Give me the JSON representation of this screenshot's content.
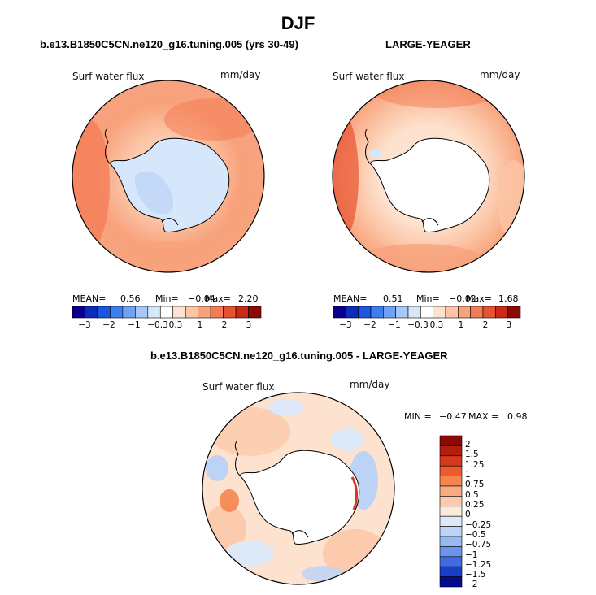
{
  "figure": {
    "title": "DJF",
    "panel_a_title": "b.e13.B1850C5CN.ne120_g16.tuning.005 (yrs 30-49)",
    "panel_b_title": "LARGE-YEAGER",
    "panel_c_title": "b.e13.B1850C5CN.ne120_g16.tuning.005 - LARGE-YEAGER"
  },
  "panels": [
    {
      "variable": "Surf water flux",
      "units": "mm/day",
      "stats": {
        "mean_label": "MEAN=",
        "mean": "0.56",
        "min_label": "Min=",
        "min": "−0.04",
        "max_label": "Max=",
        "max": "2.20"
      },
      "colorbar_ticks": [
        "−3",
        "−2",
        "−1",
        "−0.3",
        "0.3",
        "1",
        "2",
        "3"
      ]
    },
    {
      "variable": "Surf water flux",
      "units": "mm/day",
      "stats": {
        "mean_label": "MEAN=",
        "mean": "0.51",
        "min_label": "Min=",
        "min": "−0.02",
        "max_label": "Max=",
        "max": "1.68"
      },
      "colorbar_ticks": [
        "−3",
        "−2",
        "−1",
        "−0.3",
        "0.3",
        "1",
        "2",
        "3"
      ]
    },
    {
      "variable": "Surf water flux",
      "units": "mm/day",
      "stats": {
        "min_label": "MIN =",
        "min": "−0.47",
        "max_label": "MAX =",
        "max": "0.98"
      },
      "colorbar_ticks": [
        "2",
        "1.5",
        "1.25",
        "1",
        "0.75",
        "0.5",
        "0.25",
        "0",
        "−0.25",
        "−0.5",
        "−0.75",
        "−1",
        "−1.25",
        "−1.5",
        "−2"
      ]
    }
  ],
  "colors": {
    "horizontal_colorbar": [
      "#08008c",
      "#0a2cbd",
      "#1b55e0",
      "#3d7ff0",
      "#6fa2f4",
      "#a6c8f8",
      "#d6e7fb",
      "#ffffff",
      "#fde3cf",
      "#fbc5a6",
      "#f8a27c",
      "#f47b54",
      "#e8532f",
      "#cc2a17",
      "#8c0a06"
    ],
    "vertical_colorbar": [
      "#8c0a06",
      "#b41e0e",
      "#d8381c",
      "#ee5a2e",
      "#f6844f",
      "#f9aa80",
      "#fccbae",
      "#feeadb",
      "#dde9f9",
      "#bcd3f5",
      "#97b8f0",
      "#6b94ea",
      "#3f6be3",
      "#1a3ec8",
      "#060a8c"
    ],
    "land": "#ffffff",
    "outline": "#000000"
  }
}
